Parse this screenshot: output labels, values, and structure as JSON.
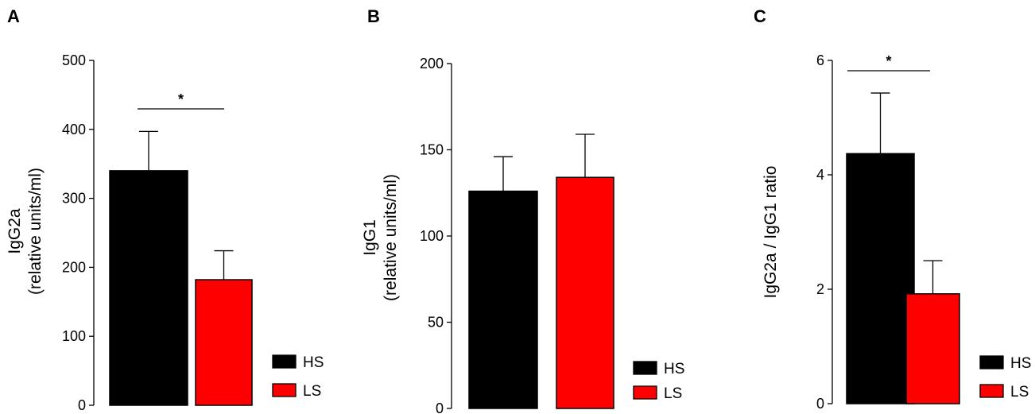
{
  "legend": {
    "items": [
      "HS",
      "LS"
    ]
  },
  "colors": {
    "HS": "#000000",
    "LS": "#ff0000"
  },
  "chart_data": [
    {
      "type": "bar",
      "panel": "A",
      "categories": [
        "HS",
        "LS"
      ],
      "values": [
        340,
        182
      ],
      "errors": [
        57,
        42
      ],
      "ylabel": [
        "IgG2a",
        "(relative units/ml)"
      ],
      "ylim": [
        0,
        500
      ],
      "yticks": [
        0,
        100,
        200,
        300,
        400,
        500
      ],
      "significance": "*",
      "legend_placement": "bottom-right"
    },
    {
      "type": "bar",
      "panel": "B",
      "categories": [
        "HS",
        "LS"
      ],
      "values": [
        126,
        134
      ],
      "errors": [
        20,
        25
      ],
      "ylabel": [
        "IgG1",
        "(relative units/ml)"
      ],
      "ylim": [
        0,
        200
      ],
      "yticks": [
        0,
        50,
        100,
        150,
        200
      ],
      "significance": "",
      "legend_placement": "bottom-right"
    },
    {
      "type": "bar",
      "panel": "C",
      "categories": [
        "HS",
        "LS"
      ],
      "values": [
        4.37,
        1.92
      ],
      "errors": [
        1.06,
        0.58
      ],
      "ylabel": [
        "IgG2a / IgG1 ratio"
      ],
      "ylim": [
        0,
        6
      ],
      "yticks": [
        0,
        2,
        4,
        6
      ],
      "significance": "*",
      "legend_placement": "bottom-right"
    }
  ]
}
